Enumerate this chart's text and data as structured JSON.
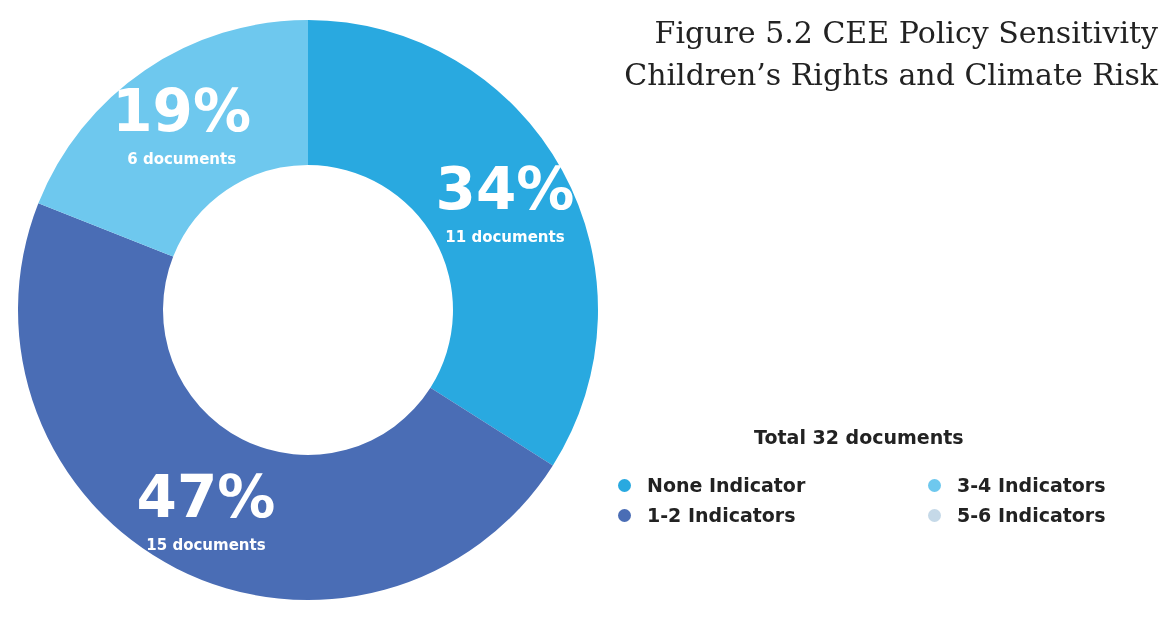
{
  "chart_data": {
    "type": "donut",
    "title": "Figure 5.2 CEE Policy Sensitivity\nChildren’s Rights and Climate Risk",
    "categories": [
      "None Indicator",
      "1-2 Indicators",
      "3-4 Indicators",
      "5-6 Indicators"
    ],
    "values": [
      34,
      47,
      19,
      0
    ],
    "colors": [
      "#29a9e0",
      "#4a6db5",
      "#6ec8ee",
      "#c5d9e8"
    ],
    "value_labels": [
      "34%",
      "47%",
      "19%",
      null
    ],
    "annotations": [
      {
        "text": "11 documents",
        "x": "None Indicator"
      },
      {
        "text": "15 documents",
        "x": "1-2 Indicators"
      },
      {
        "text": "6 documents",
        "x": "3-4 Indicators"
      }
    ],
    "legend_title": "Total 32 documents",
    "legend": "bottom right"
  }
}
